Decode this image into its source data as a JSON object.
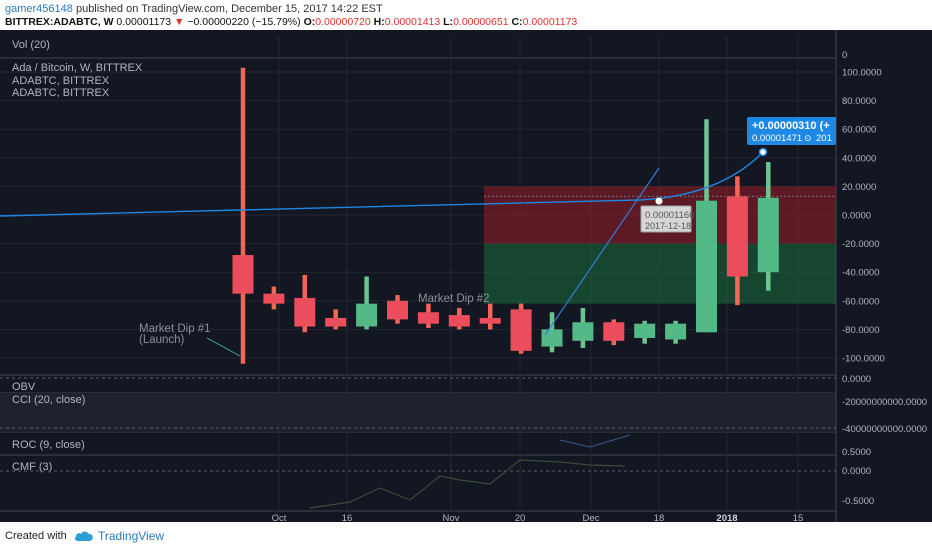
{
  "header": {
    "user": "gamer456148",
    "published_text": "published on TradingView.com, December 15, 2017 14:22 EST",
    "symbol": "BITTREX:ADABTC, W",
    "last_price": "0.00001173",
    "change": "−0.00000220 (−15.79%)",
    "open_label": "O:",
    "open": "0.00000720",
    "high_label": "H:",
    "high": "0.00001413",
    "low_label": "L:",
    "low": "0.00000651",
    "close_label": "C:",
    "close": "0.00001173"
  },
  "colors": {
    "background": "#131722",
    "panel_bg": "#1c1f28",
    "up": "#53b987",
    "down": "#eb4d5c",
    "wick_up": "#6fcf97",
    "wick_down": "#ff6b5a",
    "projection_line": "#1e88e5",
    "trend_line": "#2f7fd1"
  },
  "chart_data": {
    "type": "candlestick",
    "panes": {
      "volume": {
        "label": "Vol (20)"
      },
      "price": {
        "label": "Ada / Bitcoin, W, BITTREX",
        "overlays": [
          "ADABTC, BITTREX",
          "ADABTC, BITTREX"
        ],
        "y_ticks": [
          "100.0000",
          "80.0000",
          "60.0000",
          "40.0000",
          "20.0000",
          "0.0000",
          "-20.0000",
          "-40.0000",
          "-60.0000",
          "-80.0000",
          "-100.0000"
        ],
        "ylim": [
          -110,
          110
        ]
      },
      "obv": {
        "label": "OBV",
        "y_ticks": [
          "0.0000"
        ]
      },
      "cci": {
        "label": "CCI (20, close)",
        "y_ticks": [
          "-20000000000.0000",
          "-40000000000.0000"
        ]
      },
      "roc": {
        "label": "ROC (9, close)"
      },
      "cmf": {
        "label": "CMF (3)",
        "y_ticks": [
          "0.5000",
          "0.0000",
          "-0.5000"
        ]
      }
    },
    "x_ticks": [
      "Oct",
      "16",
      "Nov",
      "20",
      "Dec",
      "18",
      "2018",
      "15"
    ],
    "candles": [
      {
        "o": -28,
        "c": -55,
        "h": 103,
        "l": -104
      },
      {
        "o": -55,
        "c": -62,
        "h": -50,
        "l": -66
      },
      {
        "o": -58,
        "c": -78,
        "h": -42,
        "l": -82
      },
      {
        "o": -72,
        "c": -78,
        "h": -66,
        "l": -80
      },
      {
        "o": -78,
        "c": -62,
        "h": -43,
        "l": -80
      },
      {
        "o": -60,
        "c": -73,
        "h": -56,
        "l": -76
      },
      {
        "o": -68,
        "c": -76,
        "h": -62,
        "l": -79
      },
      {
        "o": -70,
        "c": -78,
        "h": -65,
        "l": -80
      },
      {
        "o": -72,
        "c": -76,
        "h": -62,
        "l": -80
      },
      {
        "o": -66,
        "c": -95,
        "h": -62,
        "l": -97
      },
      {
        "o": -92,
        "c": -80,
        "h": -68,
        "l": -96
      },
      {
        "o": -88,
        "c": -75,
        "h": -65,
        "l": -93
      },
      {
        "o": -75,
        "c": -88,
        "h": -73,
        "l": -91
      },
      {
        "o": -86,
        "c": -76,
        "h": -74,
        "l": -90
      },
      {
        "o": -87,
        "c": -76,
        "h": -74,
        "l": -90
      },
      {
        "o": -82,
        "c": 10,
        "h": 67,
        "l": -82
      },
      {
        "o": 13,
        "c": -43,
        "h": 27,
        "l": -63
      },
      {
        "o": -40,
        "c": 12,
        "h": 37,
        "l": -53
      }
    ],
    "annotations": [
      {
        "text": "Market Dip #1"
      },
      {
        "text": "(Launch)"
      },
      {
        "text": "Market Dip #2"
      }
    ],
    "crosshair": {
      "value": "0.00001160",
      "date": "2017-12-18"
    },
    "projection": {
      "label": "+0.00000310 (+",
      "price": "0.00001471",
      "time_hint": "201"
    }
  },
  "footer": {
    "created_with": "Created with",
    "brand": "TradingView",
    "logo_icon": "tradingview-cloud-icon"
  }
}
